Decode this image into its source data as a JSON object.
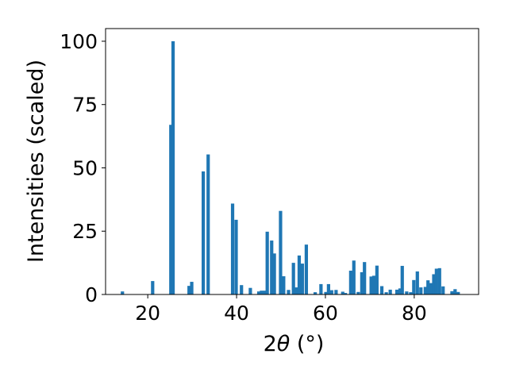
{
  "chart_data": {
    "type": "bar",
    "xlabel_pre": "2",
    "xlabel_theta": "θ",
    "xlabel_post": " (°)",
    "ylabel": "Intensities (scaled)",
    "xlim": [
      10.5,
      94.5
    ],
    "ylim": [
      0,
      105
    ],
    "xticks": [
      20,
      40,
      60,
      80
    ],
    "yticks": [
      0,
      25,
      50,
      75,
      100
    ],
    "grid": false,
    "bar_color": "#1f77b4",
    "bar_width": 0.75,
    "x": [
      14.3,
      21.1,
      25.2,
      25.7,
      29.3,
      29.9,
      32.5,
      33.6,
      39.1,
      39.9,
      41.1,
      43.1,
      45.0,
      45.6,
      46.3,
      46.9,
      47.9,
      48.5,
      49.9,
      50.6,
      51.7,
      52.8,
      53.5,
      54.1,
      54.8,
      55.7,
      57.7,
      59.0,
      60.1,
      60.7,
      61.4,
      62.4,
      63.9,
      64.5,
      65.7,
      66.4,
      67.4,
      68.2,
      68.8,
      70.3,
      70.9,
      71.6,
      72.7,
      73.7,
      74.6,
      76.1,
      76.8,
      77.3,
      78.3,
      79.2,
      79.9,
      80.7,
      81.5,
      82.5,
      83.1,
      83.7,
      84.4,
      85.0,
      85.7,
      86.5,
      88.5,
      89.2,
      89.9
    ],
    "values": [
      1.2,
      5.3,
      67,
      100,
      3.4,
      5,
      48.6,
      55.3,
      35.9,
      29.5,
      3.7,
      2.6,
      1.2,
      1.5,
      1.5,
      24.8,
      21.3,
      16.2,
      33,
      7.2,
      1.8,
      12.5,
      2.8,
      15.4,
      12.2,
      19.7,
      0.9,
      4.1,
      1,
      4.1,
      1.7,
      1.8,
      1.1,
      0.6,
      9.4,
      13.4,
      1,
      8.8,
      12.8,
      7.1,
      7.4,
      11.4,
      3.3,
      0.9,
      1.9,
      1.9,
      2.4,
      11.3,
      1.2,
      0.9,
      5.7,
      9.1,
      2.8,
      3,
      5.6,
      4.5,
      8,
      10.2,
      10.4,
      3.2,
      1.3,
      2.1,
      1
    ]
  }
}
